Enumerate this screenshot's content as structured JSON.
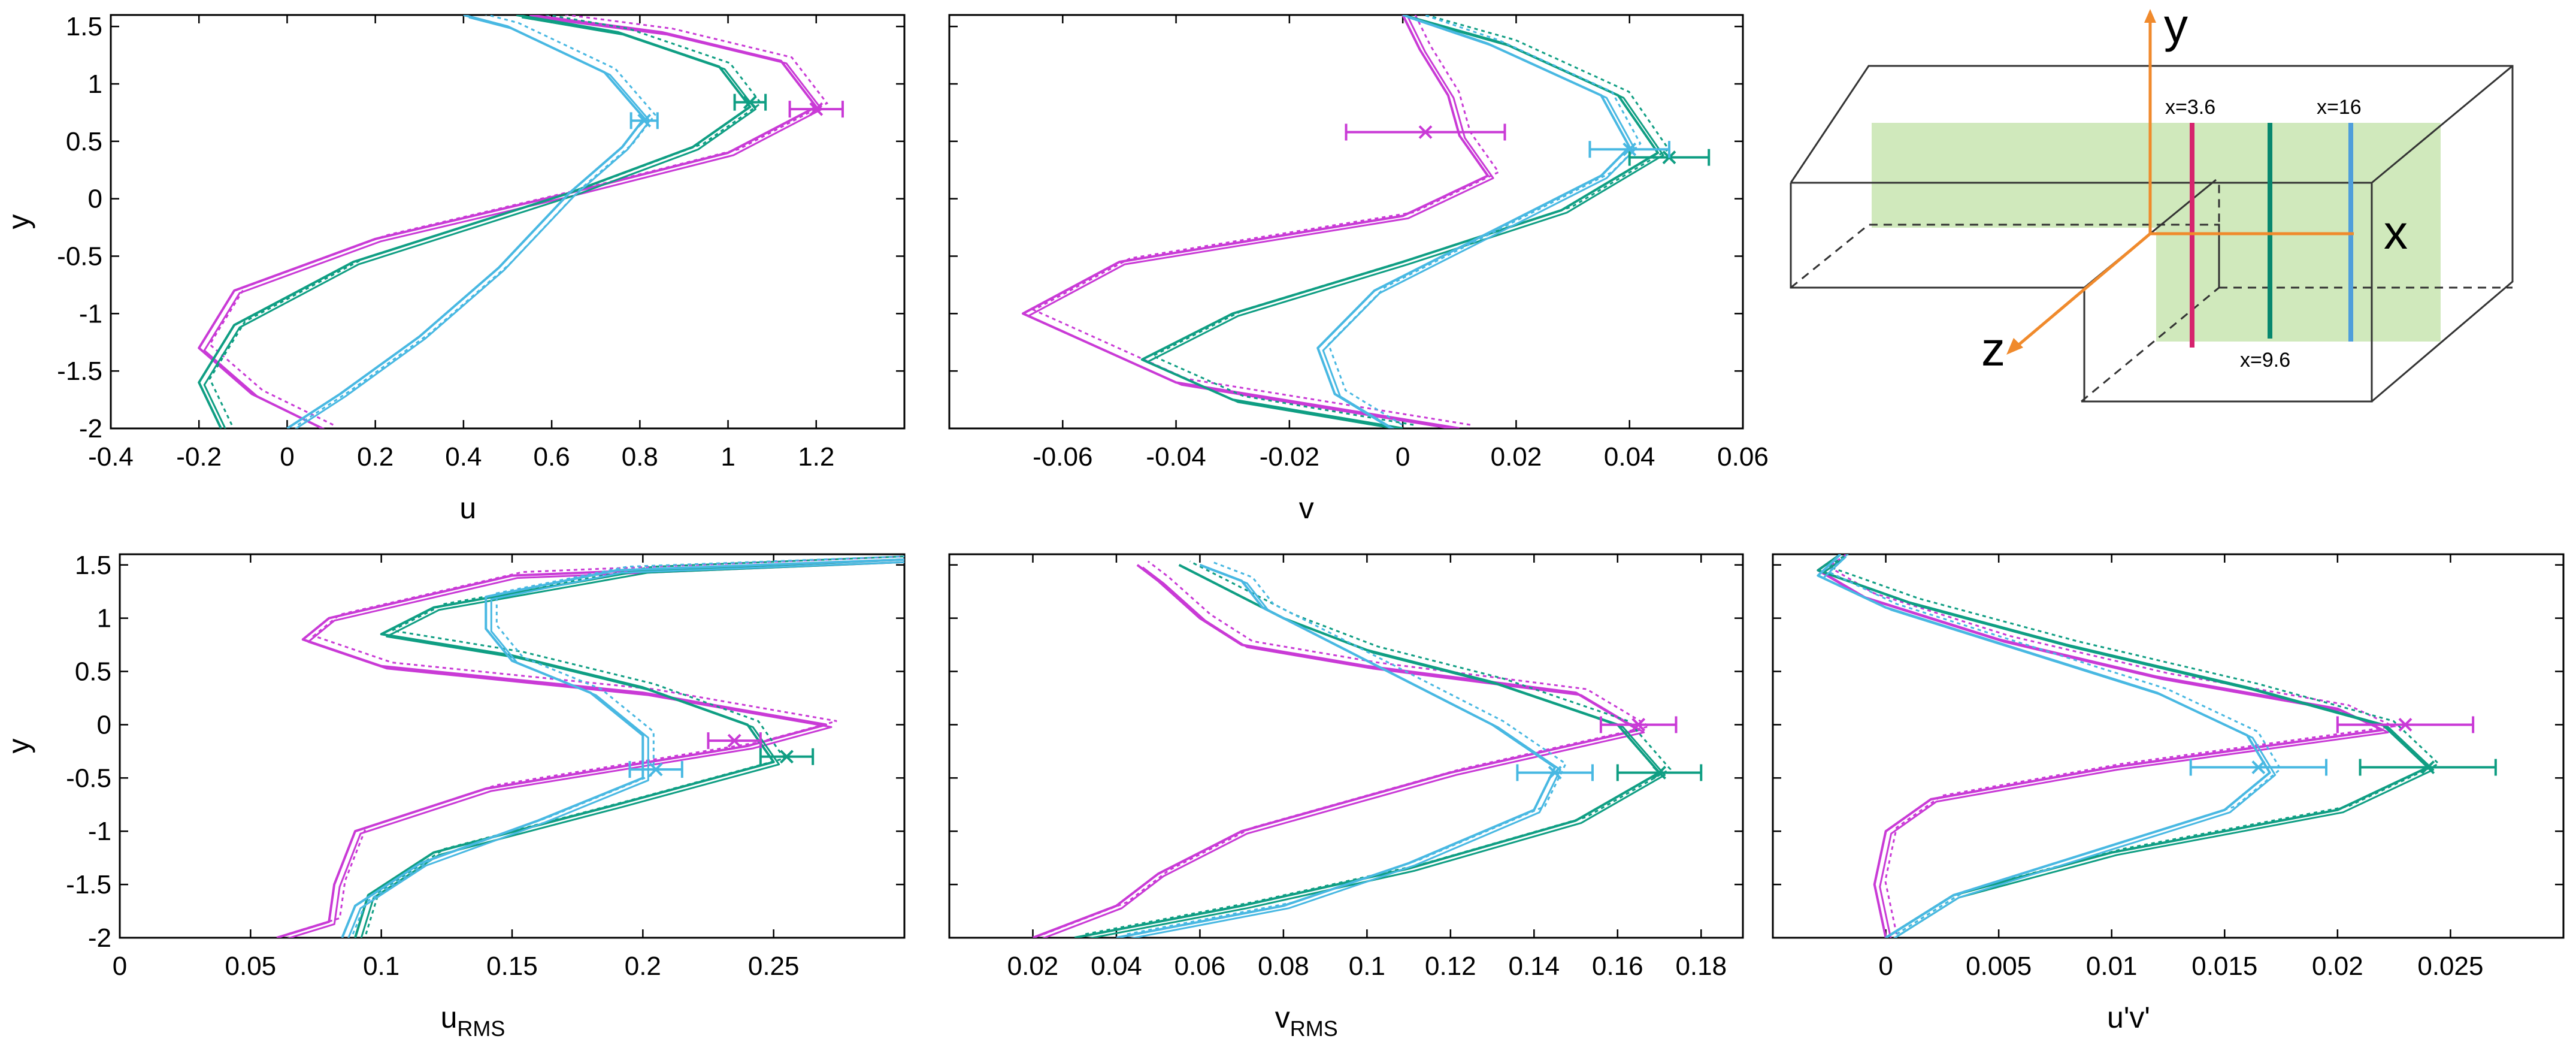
{
  "colors": {
    "magenta": "#c93ad6",
    "green": "#0f9e83",
    "blue": "#48b8e2",
    "diagram_magenta": "#d6246e",
    "diagram_green": "#07876e",
    "diagram_blue": "#4f9edb",
    "diagram_axis": "#f08a2c",
    "diagram_plane": "#c8e5b0"
  },
  "legend_stations": [
    "x=3.6",
    "x=9.6",
    "x=16"
  ],
  "chart_data": [
    {
      "id": "u",
      "type": "line",
      "xlabel": "u",
      "ylabel": "y",
      "xlim": [
        -0.4,
        1.4
      ],
      "ylim": [
        -2,
        1.6
      ],
      "xticks": [
        "-0.4",
        "-0.2",
        "0",
        "0.2",
        "0.4",
        "0.6",
        "0.8",
        "1",
        "1.2"
      ],
      "yticks": [
        "-2",
        "-1.5",
        "-1",
        "-0.5",
        "0",
        "0.5",
        "1",
        "1.5"
      ],
      "series": [
        {
          "color": "magenta",
          "points": [
            [
              0.08,
              -2
            ],
            [
              -0.08,
              -1.7
            ],
            [
              -0.2,
              -1.3
            ],
            [
              -0.12,
              -0.8
            ],
            [
              0.2,
              -0.35
            ],
            [
              0.64,
              0.05
            ],
            [
              1.0,
              0.4
            ],
            [
              1.2,
              0.8
            ],
            [
              1.12,
              1.2
            ],
            [
              0.85,
              1.45
            ],
            [
              0.55,
              1.6
            ]
          ],
          "err": {
            "y": 0.78,
            "x": 1.2,
            "dx": 0.06
          }
        },
        {
          "color": "green",
          "points": [
            [
              -0.15,
              -2
            ],
            [
              -0.2,
              -1.6
            ],
            [
              -0.12,
              -1.1
            ],
            [
              0.15,
              -0.55
            ],
            [
              0.64,
              0.05
            ],
            [
              0.92,
              0.45
            ],
            [
              1.05,
              0.8
            ],
            [
              0.98,
              1.15
            ],
            [
              0.75,
              1.45
            ],
            [
              0.52,
              1.6
            ]
          ],
          "err": {
            "y": 0.84,
            "x": 1.05,
            "dx": 0.035
          }
        },
        {
          "color": "blue",
          "points": [
            [
              0.0,
              -2
            ],
            [
              0.12,
              -1.7
            ],
            [
              0.3,
              -1.2
            ],
            [
              0.48,
              -0.6
            ],
            [
              0.64,
              0.05
            ],
            [
              0.76,
              0.45
            ],
            [
              0.81,
              0.7
            ],
            [
              0.72,
              1.1
            ],
            [
              0.5,
              1.5
            ],
            [
              0.4,
              1.6
            ]
          ],
          "err": {
            "y": 0.68,
            "x": 0.81,
            "dx": 0.03
          }
        }
      ]
    },
    {
      "id": "v",
      "type": "line",
      "xlabel": "v",
      "ylabel": "",
      "xlim": [
        -0.08,
        0.06
      ],
      "ylim": [
        -2,
        1.6
      ],
      "xticks": [
        "-0.06",
        "-0.04",
        "-0.02",
        "0",
        "0.02",
        "0.04",
        "0.06"
      ],
      "yticks": [],
      "series": [
        {
          "color": "magenta",
          "points": [
            [
              0.01,
              -2
            ],
            [
              -0.04,
              -1.6
            ],
            [
              -0.067,
              -1.0
            ],
            [
              -0.05,
              -0.55
            ],
            [
              0.0,
              -0.15
            ],
            [
              0.015,
              0.2
            ],
            [
              0.01,
              0.55
            ],
            [
              0.008,
              0.9
            ],
            [
              0.003,
              1.3
            ],
            [
              0.0,
              1.6
            ]
          ],
          "err": {
            "y": 0.58,
            "x": 0.004,
            "dx": 0.014
          }
        },
        {
          "color": "green",
          "points": [
            [
              0.0,
              -2
            ],
            [
              -0.03,
              -1.75
            ],
            [
              -0.046,
              -1.4
            ],
            [
              -0.03,
              -1.0
            ],
            [
              0.0,
              -0.55
            ],
            [
              0.028,
              -0.1
            ],
            [
              0.045,
              0.4
            ],
            [
              0.038,
              0.9
            ],
            [
              0.018,
              1.35
            ],
            [
              0.0,
              1.6
            ]
          ],
          "err": {
            "y": 0.36,
            "x": 0.047,
            "dx": 0.007
          }
        },
        {
          "color": "blue",
          "points": [
            [
              -0.002,
              -2
            ],
            [
              -0.012,
              -1.7
            ],
            [
              -0.015,
              -1.3
            ],
            [
              -0.005,
              -0.8
            ],
            [
              0.015,
              -0.3
            ],
            [
              0.035,
              0.2
            ],
            [
              0.04,
              0.45
            ],
            [
              0.035,
              0.9
            ],
            [
              0.015,
              1.35
            ],
            [
              0.0,
              1.6
            ]
          ],
          "err": {
            "y": 0.43,
            "x": 0.04,
            "dx": 0.007
          }
        }
      ]
    },
    {
      "id": "urms",
      "type": "line",
      "xlabel": "u",
      "xlabel_sub": "RMS",
      "ylabel": "y",
      "xlim": [
        0,
        0.3
      ],
      "ylim": [
        -2,
        1.6
      ],
      "xticks": [
        "0",
        "0.05",
        "0.1",
        "0.15",
        "0.2",
        "0.25"
      ],
      "yticks": [
        "-2",
        "-1.5",
        "-1",
        "-0.5",
        "0",
        "0.5",
        "1",
        "1.5"
      ],
      "series": [
        {
          "color": "magenta",
          "points": [
            [
              0.06,
              -2
            ],
            [
              0.08,
              -1.85
            ],
            [
              0.082,
              -1.5
            ],
            [
              0.09,
              -1.0
            ],
            [
              0.14,
              -0.6
            ],
            [
              0.24,
              -0.2
            ],
            [
              0.27,
              0.0
            ],
            [
              0.2,
              0.3
            ],
            [
              0.1,
              0.55
            ],
            [
              0.07,
              0.8
            ],
            [
              0.08,
              1.0
            ],
            [
              0.15,
              1.4
            ],
            [
              0.3,
              1.55
            ]
          ],
          "err": {
            "y": -0.15,
            "x": 0.235,
            "dx": 0.01
          }
        },
        {
          "color": "green",
          "points": [
            [
              0.09,
              -2
            ],
            [
              0.095,
              -1.6
            ],
            [
              0.12,
              -1.2
            ],
            [
              0.19,
              -0.75
            ],
            [
              0.25,
              -0.35
            ],
            [
              0.24,
              0.0
            ],
            [
              0.2,
              0.35
            ],
            [
              0.15,
              0.65
            ],
            [
              0.1,
              0.85
            ],
            [
              0.12,
              1.1
            ],
            [
              0.2,
              1.45
            ],
            [
              0.3,
              1.55
            ]
          ],
          "err": {
            "y": -0.3,
            "x": 0.255,
            "dx": 0.01
          }
        },
        {
          "color": "blue",
          "points": [
            [
              0.085,
              -2
            ],
            [
              0.09,
              -1.7
            ],
            [
              0.115,
              -1.3
            ],
            [
              0.16,
              -0.9
            ],
            [
              0.2,
              -0.5
            ],
            [
              0.2,
              -0.1
            ],
            [
              0.18,
              0.3
            ],
            [
              0.15,
              0.6
            ],
            [
              0.14,
              0.9
            ],
            [
              0.14,
              1.2
            ],
            [
              0.19,
              1.45
            ],
            [
              0.3,
              1.55
            ]
          ],
          "err": {
            "y": -0.42,
            "x": 0.205,
            "dx": 0.01
          }
        }
      ]
    },
    {
      "id": "vrms",
      "type": "line",
      "xlabel": "v",
      "xlabel_sub": "RMS",
      "ylabel": "",
      "xlim": [
        0.0,
        0.19
      ],
      "ylim": [
        -2,
        1.6
      ],
      "xticks": [
        "0.02",
        "0.04",
        "0.06",
        "0.08",
        "0.1",
        "0.12",
        "0.14",
        "0.16",
        "0.18"
      ],
      "yticks": [],
      "series": [
        {
          "color": "magenta",
          "points": [
            [
              0.02,
              -2
            ],
            [
              0.04,
              -1.7
            ],
            [
              0.05,
              -1.4
            ],
            [
              0.07,
              -1.0
            ],
            [
              0.12,
              -0.45
            ],
            [
              0.165,
              -0.05
            ],
            [
              0.15,
              0.3
            ],
            [
              0.1,
              0.55
            ],
            [
              0.07,
              0.75
            ],
            [
              0.06,
              1.0
            ],
            [
              0.05,
              1.35
            ],
            [
              0.045,
              1.5
            ]
          ],
          "err": {
            "y": 0.0,
            "x": 0.165,
            "dx": 0.009
          }
        },
        {
          "color": "green",
          "points": [
            [
              0.03,
              -2
            ],
            [
              0.07,
              -1.7
            ],
            [
              0.11,
              -1.35
            ],
            [
              0.15,
              -0.9
            ],
            [
              0.17,
              -0.45
            ],
            [
              0.16,
              0.0
            ],
            [
              0.13,
              0.4
            ],
            [
              0.1,
              0.7
            ],
            [
              0.08,
              1.0
            ],
            [
              0.065,
              1.3
            ],
            [
              0.055,
              1.5
            ]
          ],
          "err": {
            "y": -0.45,
            "x": 0.17,
            "dx": 0.01
          }
        },
        {
          "color": "blue",
          "points": [
            [
              0.04,
              -2
            ],
            [
              0.08,
              -1.7
            ],
            [
              0.11,
              -1.3
            ],
            [
              0.14,
              -0.8
            ],
            [
              0.145,
              -0.4
            ],
            [
              0.13,
              0.0
            ],
            [
              0.11,
              0.4
            ],
            [
              0.09,
              0.8
            ],
            [
              0.075,
              1.1
            ],
            [
              0.07,
              1.35
            ],
            [
              0.06,
              1.5
            ]
          ],
          "err": {
            "y": -0.45,
            "x": 0.145,
            "dx": 0.009
          }
        }
      ]
    },
    {
      "id": "uv",
      "type": "line",
      "xlabel": "u'v'",
      "ylabel": "",
      "xlim": [
        -0.005,
        0.03
      ],
      "ylim": [
        -2,
        1.6
      ],
      "xticks": [
        "0",
        "0.005",
        "0.01",
        "0.015",
        "0.02",
        "0.025"
      ],
      "yticks": [],
      "series": [
        {
          "color": "magenta",
          "points": [
            [
              0.0,
              -2
            ],
            [
              -0.0005,
              -1.5
            ],
            [
              0.0,
              -1.0
            ],
            [
              0.002,
              -0.7
            ],
            [
              0.01,
              -0.4
            ],
            [
              0.022,
              -0.05
            ],
            [
              0.02,
              0.15
            ],
            [
              0.012,
              0.45
            ],
            [
              0.005,
              0.8
            ],
            [
              -0.001,
              1.2
            ],
            [
              -0.003,
              1.45
            ],
            [
              -0.002,
              1.6
            ]
          ],
          "err": {
            "y": 0.0,
            "x": 0.023,
            "dx": 0.003
          }
        },
        {
          "color": "green",
          "points": [
            [
              0.0,
              -2
            ],
            [
              0.003,
              -1.6
            ],
            [
              0.01,
              -1.2
            ],
            [
              0.02,
              -0.8
            ],
            [
              0.024,
              -0.4
            ],
            [
              0.022,
              0.0
            ],
            [
              0.016,
              0.35
            ],
            [
              0.008,
              0.75
            ],
            [
              0.001,
              1.15
            ],
            [
              -0.003,
              1.45
            ],
            [
              -0.002,
              1.6
            ]
          ],
          "err": {
            "y": -0.4,
            "x": 0.024,
            "dx": 0.003
          }
        },
        {
          "color": "blue",
          "points": [
            [
              0.0,
              -2
            ],
            [
              0.003,
              -1.6
            ],
            [
              0.009,
              -1.2
            ],
            [
              0.015,
              -0.8
            ],
            [
              0.017,
              -0.45
            ],
            [
              0.016,
              -0.1
            ],
            [
              0.012,
              0.3
            ],
            [
              0.006,
              0.7
            ],
            [
              0.0,
              1.1
            ],
            [
              -0.003,
              1.4
            ],
            [
              -0.002,
              1.6
            ]
          ],
          "err": {
            "y": -0.4,
            "x": 0.0165,
            "dx": 0.003
          }
        }
      ]
    }
  ],
  "diagram": {
    "axis_y": "y",
    "axis_z": "z",
    "axis_x": "x"
  }
}
